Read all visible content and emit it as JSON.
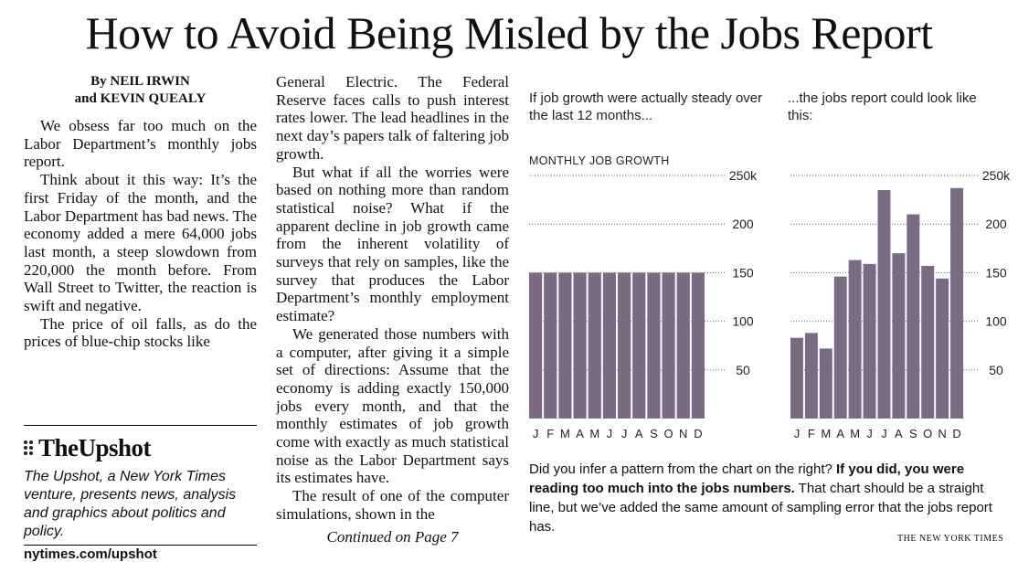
{
  "headline": "How to Avoid Being Misled by the Jobs Report",
  "byline": {
    "line1": "By NEIL IRWIN",
    "line2": "and KEVIN QUEALY"
  },
  "column1": [
    "We obsess far too much on the Labor Department’s monthly jobs report.",
    "Think about it this way: It’s the first Friday of the month, and the Labor Department has bad news. The economy added a mere 64,000 jobs last month, a steep slowdown from 220,000 the month before. From Wall Street to Twitter, the reaction is swift and negative.",
    "The price of oil falls, as do the prices of blue-chip stocks like"
  ],
  "column2": [
    "General Electric. The Federal Reserve faces calls to push interest rates lower. The lead headlines in the next day’s papers talk of faltering job growth.",
    "But what if all the worries were based on nothing more than random statistical noise? What if the apparent decline in job growth came from the inherent volatility of surveys that rely on samples, like the survey that produces the Labor Department’s monthly employment estimate?",
    "We generated those numbers with a computer, after giving it a simple set of directions: Assume that the economy is adding exactly 150,000 jobs every month, and that the monthly estimates of job growth come with exactly as much statistical noise as the Labor Department says its estimates have.",
    "The result of one of the computer simulations, shown in the"
  ],
  "continued": "Continued on Page 7",
  "upshot": {
    "name": "TheUpshot",
    "description": "The Upshot, a New York Times venture, presents news, analysis and graphics about politics and policy.",
    "url": "nytimes.com/upshot"
  },
  "intro_left": "If job growth were actually steady over the last 12 months...",
  "intro_right": "...the jobs report could look like this:",
  "chart_title": "MONTHLY JOB GROWTH",
  "caption": {
    "part1": "Did you infer a pattern from the chart on the right? ",
    "bold": "If you did, you were reading too much into the jobs numbers.",
    "part2": " That chart should be a straight line, but we’ve added the same amount of sampling error that the jobs report has."
  },
  "credit": "THE NEW YORK TIMES",
  "bar_color": "#7a6a82",
  "chart_data": [
    {
      "type": "bar",
      "title": "MONTHLY JOB GROWTH",
      "categories": [
        "J",
        "F",
        "M",
        "A",
        "M",
        "J",
        "J",
        "A",
        "S",
        "O",
        "N",
        "D"
      ],
      "values": [
        150,
        150,
        150,
        150,
        150,
        150,
        150,
        150,
        150,
        150,
        150,
        150
      ],
      "ylim": [
        0,
        250
      ],
      "yticks": [
        50,
        100,
        150,
        200,
        250
      ],
      "ytick_labels": [
        "50",
        "100",
        "150",
        "200",
        "250k"
      ],
      "grid": true
    },
    {
      "type": "bar",
      "title": "",
      "categories": [
        "J",
        "F",
        "M",
        "A",
        "M",
        "J",
        "J",
        "A",
        "S",
        "O",
        "N",
        "D"
      ],
      "values": [
        83,
        88,
        72,
        146,
        163,
        159,
        235,
        170,
        210,
        157,
        144,
        237
      ],
      "ylim": [
        0,
        250
      ],
      "yticks": [
        50,
        100,
        150,
        200,
        250
      ],
      "ytick_labels": [
        "50",
        "100",
        "150",
        "200",
        "250k"
      ],
      "grid": true
    }
  ]
}
